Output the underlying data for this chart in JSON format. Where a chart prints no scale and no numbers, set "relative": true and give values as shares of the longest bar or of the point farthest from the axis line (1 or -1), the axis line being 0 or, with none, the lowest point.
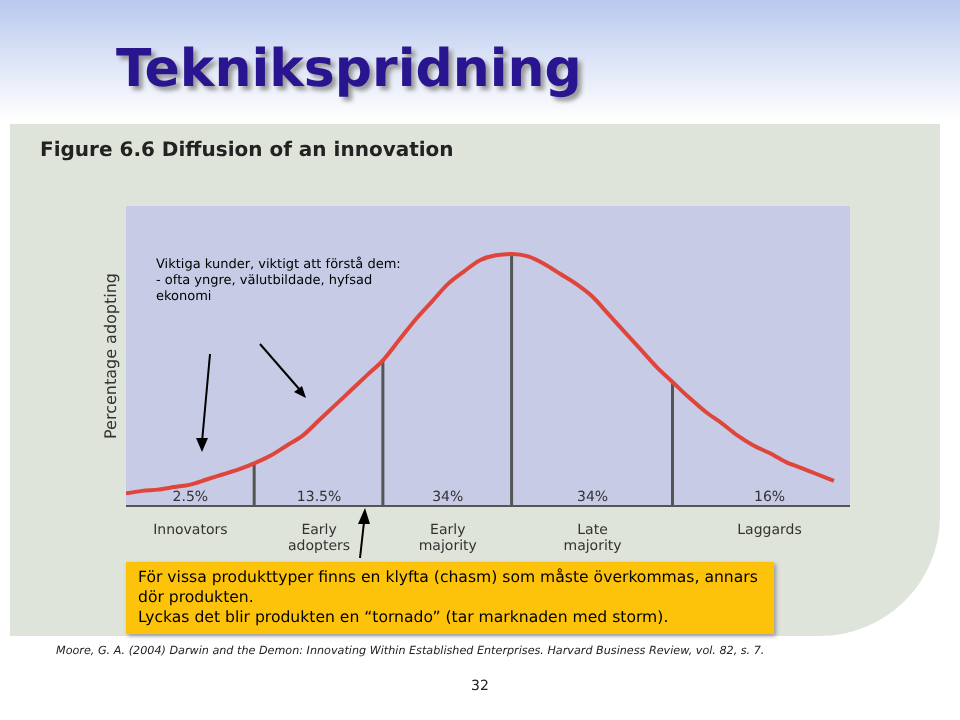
{
  "chart_data": {
    "type": "line",
    "relative": true,
    "title": "Teknikspridning",
    "subtitle": "Figure 6.6 Diffusion of an innovation",
    "ylabel": "Percentage adopting",
    "categories": [
      null,
      null,
      null,
      null,
      "Innovators",
      null,
      null,
      null,
      null,
      null,
      null,
      null,
      "Early adopters",
      null,
      null,
      null,
      null,
      null,
      null,
      null,
      "Early majority",
      null,
      null,
      null,
      null,
      null,
      null,
      null,
      null,
      "Late majority",
      null,
      null,
      null,
      null,
      null,
      null,
      null,
      null,
      null,
      null,
      "Laggards",
      null,
      null,
      null,
      null,
      null
    ],
    "series": [
      {
        "color": "#e0453c",
        "values": [
          0.05,
          0.06,
          0.065,
          0.075,
          0.085,
          0.105,
          0.125,
          0.145,
          0.17,
          0.2,
          0.24,
          0.28,
          0.34,
          0.4,
          0.46,
          0.52,
          0.58,
          0.66,
          0.74,
          0.81,
          0.88,
          0.93,
          0.975,
          0.995,
          1,
          0.99,
          0.96,
          0.92,
          0.88,
          0.83,
          0.76,
          0.69,
          0.62,
          0.55,
          0.49,
          0.43,
          0.375,
          0.33,
          0.28,
          0.24,
          0.21,
          0.175,
          0.15,
          0.125,
          0.1,
          null
        ]
      },
      {
        "type": "bar",
        "color": "#555555",
        "values": [
          null,
          null,
          null,
          null,
          null,
          null,
          null,
          null,
          0.17,
          null,
          null,
          null,
          null,
          null,
          null,
          null,
          0.58,
          null,
          null,
          null,
          null,
          null,
          null,
          null,
          1,
          null,
          null,
          null,
          null,
          null,
          null,
          null,
          null,
          null,
          0.49,
          null,
          null,
          null,
          null,
          null,
          null,
          null,
          null,
          null,
          null,
          null
        ]
      }
    ],
    "marker": "none",
    "line_style": "solid",
    "grid": false,
    "legend": false,
    "annotations": [
      "Viktiga kunder, viktigt att förstå dem:\n- ofta yngre, välutbildade, hyfsad ekonomi",
      "För vissa produkttyper finns en klyfta (chasm) som måste överkommas, annars dör produkten.\nLyckas det blir produkten en “tornado” (tar marknaden med storm).",
      "Moore, G. A. (2004) Darwin and the Demon: Innovating Within Established Enterprises. Harvard Business Review, vol. 82, s. 7.",
      "32",
      "2.5%",
      "13.5%",
      "34%",
      "34%",
      "16%"
    ]
  }
}
